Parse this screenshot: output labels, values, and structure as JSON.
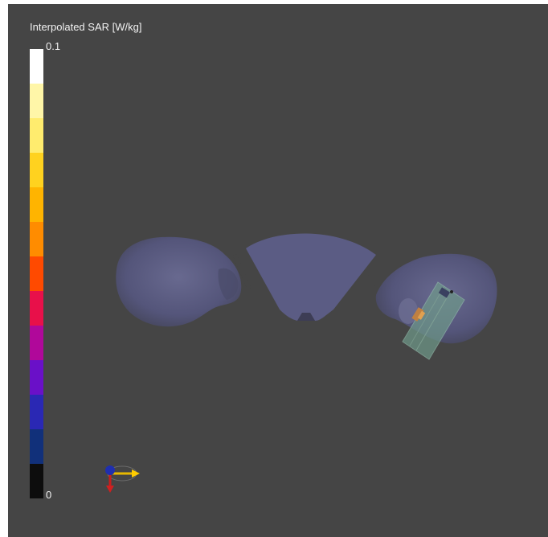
{
  "colorbar": {
    "title": "Interpolated SAR [W/kg]",
    "max_label": "0.1",
    "min_label": "0",
    "colors": [
      "#ffffff",
      "#fff6a8",
      "#ffec6e",
      "#ffd21f",
      "#ffb400",
      "#ff8c00",
      "#ff4a00",
      "#e8104a",
      "#b0089a",
      "#6a10c8",
      "#2a28b4",
      "#11307a",
      "#0d0d0d"
    ]
  },
  "colors": {
    "viewport_background": "#454545",
    "phantom_surface": "#5a5b80",
    "antenna_box": "#6f9a8a"
  },
  "icons": [
    "axes-gizmo-icon"
  ]
}
